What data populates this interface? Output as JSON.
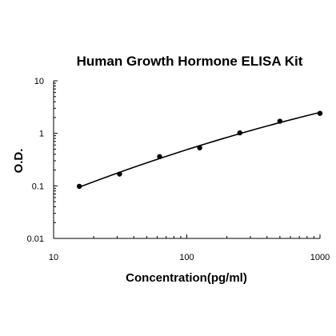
{
  "chart_data": {
    "type": "scatter",
    "title": "Human Growth Hormone ELISA Kit",
    "xlabel": "Concentration(pg/ml)",
    "ylabel": "O.D.",
    "x_scale": "log",
    "y_scale": "log",
    "xlim": [
      10,
      1000
    ],
    "ylim": [
      0.01,
      10
    ],
    "x_ticks": [
      "10",
      "100",
      "1000"
    ],
    "y_ticks": [
      "0.01",
      "0.1",
      "1",
      "10"
    ],
    "grid": false,
    "legend": "none",
    "series": [
      {
        "points": [
          {
            "x": 15.6,
            "y": 0.098
          },
          {
            "x": 31.25,
            "y": 0.168
          },
          {
            "x": 62.5,
            "y": 0.36
          },
          {
            "x": 125,
            "y": 0.53
          },
          {
            "x": 250,
            "y": 1.02
          },
          {
            "x": 500,
            "y": 1.7
          },
          {
            "x": 1000,
            "y": 2.4
          }
        ],
        "fit_curve": true
      }
    ],
    "colors": {
      "points": "#000000",
      "curve": "#000000",
      "axes": "#000000"
    }
  }
}
